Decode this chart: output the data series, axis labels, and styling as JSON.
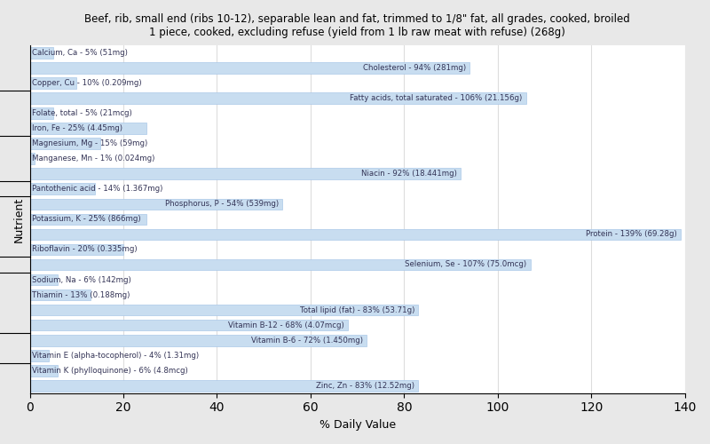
{
  "title": "Beef, rib, small end (ribs 10-12), separable lean and fat, trimmed to 1/8\" fat, all grades, cooked, broiled\n1 piece, cooked, excluding refuse (yield from 1 lb raw meat with refuse) (268g)",
  "xlabel": "% Daily Value",
  "ylabel": "Nutrient",
  "xlim": [
    0,
    140
  ],
  "xticks": [
    0,
    20,
    40,
    60,
    80,
    100,
    120,
    140
  ],
  "bar_color": "#c8ddf0",
  "bar_edge_color": "#aac8e8",
  "plot_bg_color": "#ffffff",
  "fig_bg_color": "#e8e8e8",
  "text_color": "#333355",
  "nutrients": [
    {
      "label": "Calcium, Ca - 5% (51mg)",
      "value": 5
    },
    {
      "label": "Cholesterol - 94% (281mg)",
      "value": 94
    },
    {
      "label": "Copper, Cu - 10% (0.209mg)",
      "value": 10
    },
    {
      "label": "Fatty acids, total saturated - 106% (21.156g)",
      "value": 106
    },
    {
      "label": "Folate, total - 5% (21mcg)",
      "value": 5
    },
    {
      "label": "Iron, Fe - 25% (4.45mg)",
      "value": 25
    },
    {
      "label": "Magnesium, Mg - 15% (59mg)",
      "value": 15
    },
    {
      "label": "Manganese, Mn - 1% (0.024mg)",
      "value": 1
    },
    {
      "label": "Niacin - 92% (18.441mg)",
      "value": 92
    },
    {
      "label": "Pantothenic acid - 14% (1.367mg)",
      "value": 14
    },
    {
      "label": "Phosphorus, P - 54% (539mg)",
      "value": 54
    },
    {
      "label": "Potassium, K - 25% (866mg)",
      "value": 25
    },
    {
      "label": "Protein - 139% (69.28g)",
      "value": 139
    },
    {
      "label": "Riboflavin - 20% (0.335mg)",
      "value": 20
    },
    {
      "label": "Selenium, Se - 107% (75.0mcg)",
      "value": 107
    },
    {
      "label": "Sodium, Na - 6% (142mg)",
      "value": 6
    },
    {
      "label": "Thiamin - 13% (0.188mg)",
      "value": 13
    },
    {
      "label": "Total lipid (fat) - 83% (53.71g)",
      "value": 83
    },
    {
      "label": "Vitamin B-12 - 68% (4.07mcg)",
      "value": 68
    },
    {
      "label": "Vitamin B-6 - 72% (1.450mg)",
      "value": 72
    },
    {
      "label": "Vitamin E (alpha-tocopherol) - 4% (1.31mg)",
      "value": 4
    },
    {
      "label": "Vitamin K (phylloquinone) - 6% (4.8mcg)",
      "value": 6
    },
    {
      "label": "Zinc, Zn - 83% (12.52mg)",
      "value": 83
    }
  ],
  "group_tick_positions": [
    1.5,
    3.5,
    7.5,
    8.5,
    12.5,
    13.5,
    16.5,
    19.5
  ]
}
